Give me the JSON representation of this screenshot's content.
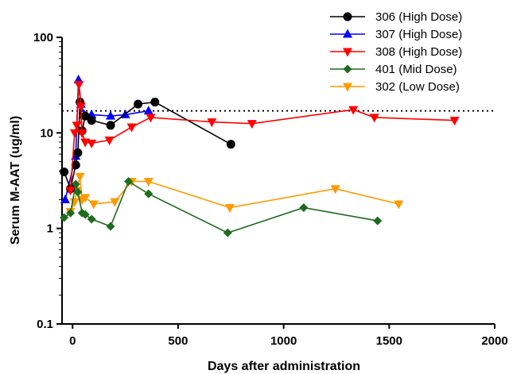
{
  "chart_data": {
    "type": "line",
    "title": "",
    "xlabel": "Days after administration",
    "ylabel": "Serum M-AAT (ug/ml)",
    "xlim": [
      -50,
      2000
    ],
    "ylim": [
      0.1,
      100
    ],
    "yscale": "log",
    "xticks": [
      0,
      500,
      1000,
      1500,
      2000
    ],
    "yticks": [
      0.1,
      1,
      10,
      100
    ],
    "ytick_labels": [
      "0.1",
      "1",
      "10",
      "100"
    ],
    "grid": false,
    "legend_position": "top-right",
    "reference_line": {
      "y": 17,
      "style": "dotted"
    },
    "series": [
      {
        "name": "306 (High Dose)",
        "color": "#000000",
        "marker": "circle",
        "x": [
          -40,
          -10,
          15,
          25,
          35,
          45,
          60,
          90,
          180,
          310,
          390,
          750
        ],
        "y": [
          3.9,
          2.6,
          4.6,
          6.2,
          21,
          10.5,
          15,
          13.5,
          12,
          20,
          21,
          7.6
        ]
      },
      {
        "name": "307 (High Dose)",
        "color": "#0000ff",
        "marker": "triangle-up",
        "x": [
          -35,
          15,
          28,
          40,
          55,
          90,
          180,
          250,
          360
        ],
        "y": [
          2.0,
          5.7,
          36,
          20,
          15.5,
          15.5,
          15,
          15.5,
          17
        ]
      },
      {
        "name": "308 (High Dose)",
        "color": "#ff0000",
        "marker": "triangle-down",
        "x": [
          -10,
          10,
          20,
          30,
          40,
          45,
          60,
          90,
          175,
          280,
          370,
          660,
          850,
          1330,
          1430,
          1810
        ],
        "y": [
          2.5,
          10,
          12,
          32,
          19,
          10,
          8,
          7.8,
          8.4,
          11.5,
          14.5,
          13,
          12.5,
          17.5,
          14.5,
          13.5
        ]
      },
      {
        "name": "401 (Mid Dose)",
        "color": "#1e6b1e",
        "marker": "diamond",
        "x": [
          -40,
          -10,
          15,
          25,
          45,
          60,
          90,
          180,
          265,
          360,
          735,
          1095,
          1445
        ],
        "y": [
          1.3,
          1.45,
          2.9,
          2.4,
          1.45,
          1.4,
          1.25,
          1.05,
          3.1,
          2.3,
          0.9,
          1.65,
          1.2
        ]
      },
      {
        "name": "302 (Low Dose)",
        "color": "#ff9900",
        "marker": "triangle-down",
        "x": [
          -10,
          10,
          20,
          35,
          45,
          60,
          100,
          200,
          280,
          360,
          745,
          1245,
          1545
        ],
        "y": [
          1.5,
          1.9,
          2.5,
          3.5,
          2.0,
          2.1,
          1.8,
          1.9,
          3.1,
          3.1,
          1.65,
          2.6,
          1.8
        ]
      }
    ]
  }
}
